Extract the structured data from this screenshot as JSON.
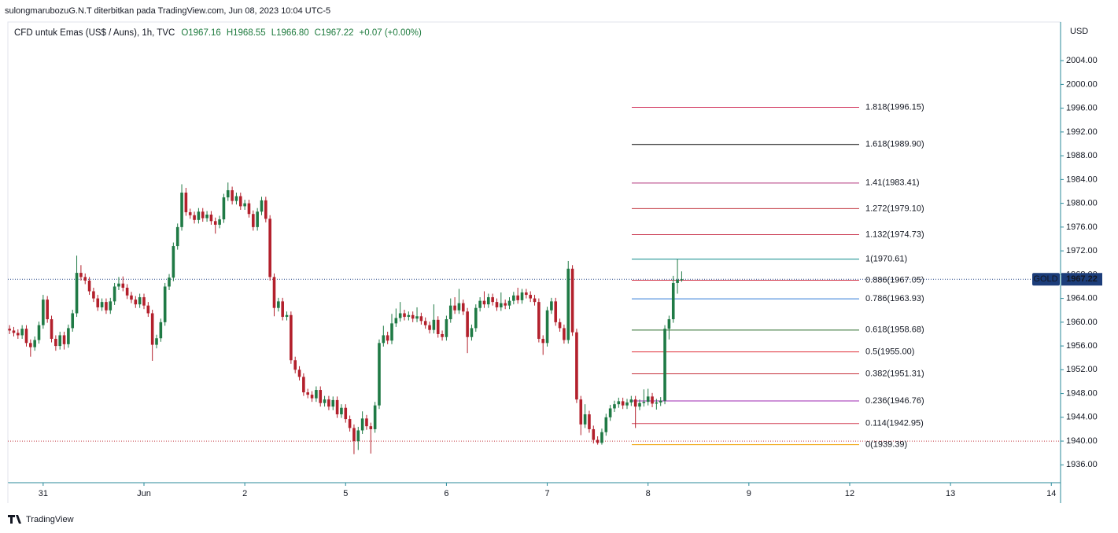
{
  "chart_data": {
    "type": "candlestick",
    "publisher": "sulongmarubozuG.N.T diterbitkan pada TradingView.com, Jun 08, 2023 10:04 UTC-5",
    "title": "CFD untuk Emas (US$ / Auns), 1h, TVC",
    "legend_values": [
      "O1967.16",
      "H1968.55",
      "L1966.80",
      "C1967.22",
      "+0.07 (+0.00%)"
    ],
    "currency": "USD",
    "symbol": "GOLD",
    "last_price": 1967.22,
    "last_price_label": "1967.22",
    "brand": "TradingView",
    "up_color": "#1f7a45",
    "down_color": "#b3202c",
    "xlim": [
      -0.4,
      250.2
    ],
    "xticks": [
      {
        "value": 8,
        "label": "31"
      },
      {
        "value": 32,
        "label": "Jun"
      },
      {
        "value": 56,
        "label": "2"
      },
      {
        "value": 80,
        "label": "5"
      },
      {
        "value": 104,
        "label": "6"
      },
      {
        "value": 128,
        "label": "7"
      },
      {
        "value": 152,
        "label": "8"
      },
      {
        "value": 176,
        "label": "9"
      },
      {
        "value": 200,
        "label": "12"
      },
      {
        "value": 224,
        "label": "13"
      },
      {
        "value": 248,
        "label": "14"
      }
    ],
    "ylim": [
      1933,
      2010.5
    ],
    "yticks": [
      {
        "value": 1936,
        "label": "1936.00"
      },
      {
        "value": 1940,
        "label": "1940.00"
      },
      {
        "value": 1944,
        "label": "1944.00"
      },
      {
        "value": 1948,
        "label": "1948.00"
      },
      {
        "value": 1952,
        "label": "1952.00"
      },
      {
        "value": 1956,
        "label": "1956.00"
      },
      {
        "value": 1960,
        "label": "1960.00"
      },
      {
        "value": 1964,
        "label": "1964.00"
      },
      {
        "value": 1968,
        "label": "1968.00"
      },
      {
        "value": 1972,
        "label": "1972.00"
      },
      {
        "value": 1976,
        "label": "1976.00"
      },
      {
        "value": 1980,
        "label": "1980.00"
      },
      {
        "value": 1984,
        "label": "1984.00"
      },
      {
        "value": 1988,
        "label": "1988.00"
      },
      {
        "value": 1992,
        "label": "1992.00"
      },
      {
        "value": 1996,
        "label": "1996.00"
      },
      {
        "value": 2000,
        "label": "2000.00"
      },
      {
        "value": 2004,
        "label": "2004.00"
      }
    ],
    "price_lines": [
      {
        "value": 1967.22,
        "color": "#2a4a8a"
      },
      {
        "value": 1940,
        "color": "#c0303a"
      }
    ],
    "fib_levels": [
      {
        "label": "1.818(1996.15)",
        "value": 1996.15,
        "color": "#d0305a"
      },
      {
        "label": "1.618(1989.90)",
        "value": 1989.9,
        "color": "#000000"
      },
      {
        "label": "1.41(1983.41)",
        "value": 1983.41,
        "color": "#b0307a"
      },
      {
        "label": "1.272(1979.10)",
        "value": 1979.1,
        "color": "#c0303a"
      },
      {
        "label": "1.132(1974.73)",
        "value": 1974.73,
        "color": "#c8304a"
      },
      {
        "label": "1(1970.61)",
        "value": 1970.61,
        "color": "#0a8a8a"
      },
      {
        "label": "0.886(1967.05)",
        "value": 1967.05,
        "color": "#d33a4f"
      },
      {
        "label": "0.786(1963.93)",
        "value": 1963.93,
        "color": "#2f7ad6"
      },
      {
        "label": "0.618(1958.68)",
        "value": 1958.68,
        "color": "#2e6b2e"
      },
      {
        "label": "0.5(1955.00)",
        "value": 1955.0,
        "color": "#e0303a"
      },
      {
        "label": "0.382(1951.31)",
        "value": 1951.31,
        "color": "#c6303a"
      },
      {
        "label": "0.236(1946.76)",
        "value": 1946.76,
        "color": "#9c27b0"
      },
      {
        "label": "0.114(1942.95)",
        "value": 1942.95,
        "color": "#d03a50"
      },
      {
        "label": "0(1939.39)",
        "value": 1939.39,
        "color": "#f0a000"
      }
    ],
    "ohlc": [
      [
        1958.9,
        1959.5,
        1958.0,
        1958.6
      ],
      [
        1958.6,
        1959.2,
        1957.6,
        1958.2
      ],
      [
        1958.2,
        1958.8,
        1957.2,
        1957.8
      ],
      [
        1957.8,
        1959.5,
        1957.2,
        1958.9
      ],
      [
        1958.9,
        1959.5,
        1955.9,
        1956.5
      ],
      [
        1956.5,
        1957.1,
        1954.2,
        1955.8
      ],
      [
        1955.8,
        1957.6,
        1955.2,
        1957.0
      ],
      [
        1957.0,
        1960.1,
        1956.4,
        1959.5
      ],
      [
        1959.5,
        1964.6,
        1958.9,
        1963.8
      ],
      [
        1963.8,
        1964.4,
        1959.9,
        1960.5
      ],
      [
        1960.5,
        1961.1,
        1956.6,
        1957.2
      ],
      [
        1957.2,
        1957.8,
        1955.2,
        1956.0
      ],
      [
        1956.0,
        1958.4,
        1955.4,
        1957.8
      ],
      [
        1957.8,
        1958.4,
        1955.4,
        1956.3
      ],
      [
        1956.3,
        1959.6,
        1955.7,
        1959.0
      ],
      [
        1959.0,
        1962.1,
        1958.4,
        1961.5
      ],
      [
        1961.5,
        1971.2,
        1960.9,
        1968.3
      ],
      [
        1968.3,
        1969.6,
        1967.0,
        1967.6
      ],
      [
        1967.6,
        1968.2,
        1966.4,
        1967.0
      ],
      [
        1967.0,
        1967.6,
        1964.6,
        1965.2
      ],
      [
        1965.2,
        1965.8,
        1963.4,
        1964.0
      ],
      [
        1964.0,
        1964.6,
        1961.9,
        1962.5
      ],
      [
        1962.5,
        1964.0,
        1961.9,
        1963.4
      ],
      [
        1963.4,
        1964.0,
        1961.4,
        1962.0
      ],
      [
        1962.0,
        1964.1,
        1961.4,
        1963.5
      ],
      [
        1963.5,
        1966.6,
        1962.9,
        1966.0
      ],
      [
        1966.0,
        1967.6,
        1965.4,
        1966.5
      ],
      [
        1966.5,
        1967.7,
        1965.2,
        1965.8
      ],
      [
        1965.8,
        1966.4,
        1963.9,
        1964.5
      ],
      [
        1964.5,
        1965.1,
        1963.2,
        1963.8
      ],
      [
        1963.8,
        1964.4,
        1962.4,
        1963.0
      ],
      [
        1963.0,
        1964.8,
        1962.4,
        1964.2
      ],
      [
        1964.2,
        1964.8,
        1962.2,
        1962.8
      ],
      [
        1962.8,
        1963.4,
        1960.9,
        1961.5
      ],
      [
        1961.5,
        1962.1,
        1953.5,
        1956.2
      ],
      [
        1956.2,
        1957.9,
        1955.6,
        1957.3
      ],
      [
        1957.3,
        1960.6,
        1956.7,
        1960.0
      ],
      [
        1960.0,
        1966.6,
        1959.4,
        1966.0
      ],
      [
        1966.0,
        1968.1,
        1965.4,
        1967.5
      ],
      [
        1967.5,
        1973.4,
        1966.9,
        1972.8
      ],
      [
        1972.8,
        1976.6,
        1972.2,
        1976.0
      ],
      [
        1976.0,
        1983.2,
        1975.4,
        1981.8
      ],
      [
        1981.8,
        1982.6,
        1977.9,
        1978.5
      ],
      [
        1978.5,
        1979.1,
        1977.4,
        1978.0
      ],
      [
        1978.0,
        1978.6,
        1976.6,
        1977.2
      ],
      [
        1977.2,
        1979.2,
        1976.6,
        1978.6
      ],
      [
        1978.6,
        1979.2,
        1976.9,
        1977.5
      ],
      [
        1977.5,
        1978.7,
        1976.9,
        1978.1
      ],
      [
        1978.1,
        1978.7,
        1976.4,
        1977.0
      ],
      [
        1977.0,
        1977.6,
        1974.9,
        1976.4
      ],
      [
        1976.4,
        1977.9,
        1975.8,
        1977.3
      ],
      [
        1977.3,
        1981.6,
        1976.7,
        1981.0
      ],
      [
        1981.0,
        1983.5,
        1980.4,
        1982.2
      ],
      [
        1982.2,
        1982.8,
        1979.8,
        1980.4
      ],
      [
        1980.4,
        1981.8,
        1979.8,
        1981.2
      ],
      [
        1981.2,
        1981.8,
        1978.9,
        1979.5
      ],
      [
        1979.5,
        1980.6,
        1978.9,
        1980.0
      ],
      [
        1980.0,
        1980.6,
        1977.6,
        1978.2
      ],
      [
        1978.2,
        1978.8,
        1975.4,
        1976.0
      ],
      [
        1976.0,
        1979.2,
        1975.4,
        1978.6
      ],
      [
        1978.6,
        1981.1,
        1978.0,
        1980.5
      ],
      [
        1980.5,
        1981.1,
        1976.8,
        1977.4
      ],
      [
        1977.4,
        1978.0,
        1967.0,
        1967.6
      ],
      [
        1967.6,
        1968.2,
        1961.0,
        1962.4
      ],
      [
        1962.4,
        1964.1,
        1961.8,
        1963.5
      ],
      [
        1963.5,
        1964.1,
        1960.3,
        1960.9
      ],
      [
        1960.9,
        1961.8,
        1960.3,
        1961.2
      ],
      [
        1961.2,
        1961.8,
        1953.0,
        1953.6
      ],
      [
        1953.6,
        1954.2,
        1951.4,
        1952.0
      ],
      [
        1952.0,
        1952.6,
        1950.2,
        1950.8
      ],
      [
        1950.8,
        1951.4,
        1947.6,
        1948.2
      ],
      [
        1948.2,
        1948.8,
        1947.2,
        1947.8
      ],
      [
        1947.8,
        1948.4,
        1946.6,
        1947.2
      ],
      [
        1947.2,
        1949.2,
        1946.6,
        1948.6
      ],
      [
        1948.6,
        1949.2,
        1945.8,
        1946.4
      ],
      [
        1946.4,
        1947.6,
        1945.8,
        1947.0
      ],
      [
        1947.0,
        1947.6,
        1945.2,
        1945.8
      ],
      [
        1945.8,
        1947.5,
        1945.2,
        1946.9
      ],
      [
        1946.9,
        1947.5,
        1943.9,
        1944.5
      ],
      [
        1944.5,
        1946.2,
        1943.9,
        1945.6
      ],
      [
        1945.6,
        1946.2,
        1943.1,
        1943.7
      ],
      [
        1943.7,
        1944.3,
        1941.6,
        1942.2
      ],
      [
        1942.2,
        1942.8,
        1937.8,
        1940.0
      ],
      [
        1940.0,
        1942.4,
        1938.5,
        1941.8
      ],
      [
        1941.8,
        1945.0,
        1941.2,
        1943.8
      ],
      [
        1943.8,
        1944.4,
        1941.9,
        1942.5
      ],
      [
        1942.5,
        1943.1,
        1937.9,
        1942.0
      ],
      [
        1942.0,
        1946.6,
        1941.4,
        1946.0
      ],
      [
        1946.0,
        1957.1,
        1945.4,
        1956.5
      ],
      [
        1956.5,
        1959.4,
        1955.9,
        1957.8
      ],
      [
        1957.8,
        1958.4,
        1956.3,
        1956.9
      ],
      [
        1956.9,
        1961.4,
        1956.3,
        1959.8
      ],
      [
        1959.8,
        1962.3,
        1959.2,
        1960.7
      ],
      [
        1960.7,
        1963.4,
        1960.1,
        1961.5
      ],
      [
        1961.5,
        1962.1,
        1960.3,
        1960.9
      ],
      [
        1960.9,
        1961.8,
        1960.3,
        1961.2
      ],
      [
        1961.2,
        1961.8,
        1960.0,
        1960.6
      ],
      [
        1960.6,
        1962.5,
        1960.0,
        1961.0
      ],
      [
        1961.0,
        1961.6,
        1959.6,
        1960.2
      ],
      [
        1960.2,
        1960.8,
        1958.9,
        1959.5
      ],
      [
        1959.5,
        1960.1,
        1958.1,
        1958.7
      ],
      [
        1958.7,
        1963.0,
        1958.1,
        1960.4
      ],
      [
        1960.4,
        1961.0,
        1957.4,
        1958.0
      ],
      [
        1958.0,
        1958.6,
        1956.9,
        1957.5
      ],
      [
        1957.5,
        1961.1,
        1956.9,
        1960.5
      ],
      [
        1960.5,
        1964.0,
        1959.9,
        1962.8
      ],
      [
        1962.8,
        1964.2,
        1961.4,
        1962.0
      ],
      [
        1962.0,
        1965.6,
        1961.4,
        1963.2
      ],
      [
        1963.2,
        1963.8,
        1961.2,
        1961.8
      ],
      [
        1961.8,
        1962.4,
        1954.8,
        1957.5
      ],
      [
        1957.5,
        1959.6,
        1956.9,
        1959.0
      ],
      [
        1959.0,
        1963.0,
        1958.4,
        1962.4
      ],
      [
        1962.4,
        1964.2,
        1961.8,
        1963.6
      ],
      [
        1963.6,
        1965.2,
        1962.4,
        1963.0
      ],
      [
        1963.0,
        1964.8,
        1962.4,
        1964.2
      ],
      [
        1964.2,
        1964.8,
        1962.8,
        1963.4
      ],
      [
        1963.4,
        1964.0,
        1961.9,
        1962.5
      ],
      [
        1962.5,
        1965.0,
        1961.9,
        1963.2
      ],
      [
        1963.2,
        1963.8,
        1962.2,
        1962.8
      ],
      [
        1962.8,
        1964.2,
        1962.2,
        1963.6
      ],
      [
        1963.6,
        1965.1,
        1963.0,
        1964.5
      ],
      [
        1964.5,
        1965.8,
        1963.1,
        1963.7
      ],
      [
        1963.7,
        1965.6,
        1963.1,
        1965.0
      ],
      [
        1965.0,
        1965.6,
        1964.0,
        1964.6
      ],
      [
        1964.6,
        1965.2,
        1963.4,
        1964.0
      ],
      [
        1964.0,
        1964.6,
        1962.8,
        1963.4
      ],
      [
        1963.4,
        1964.0,
        1956.6,
        1957.2
      ],
      [
        1957.2,
        1957.8,
        1954.5,
        1956.5
      ],
      [
        1956.5,
        1962.6,
        1955.9,
        1962.0
      ],
      [
        1962.0,
        1964.1,
        1961.4,
        1963.5
      ],
      [
        1963.5,
        1964.1,
        1959.4,
        1960.0
      ],
      [
        1960.0,
        1960.6,
        1958.4,
        1959.0
      ],
      [
        1959.0,
        1959.6,
        1956.4,
        1957.0
      ],
      [
        1957.0,
        1970.3,
        1956.4,
        1969.0
      ],
      [
        1969.0,
        1969.6,
        1957.7,
        1958.3
      ],
      [
        1958.3,
        1958.9,
        1946.4,
        1947.0
      ],
      [
        1947.0,
        1947.6,
        1941.0,
        1942.8
      ],
      [
        1942.8,
        1946.2,
        1942.2,
        1944.5
      ],
      [
        1944.5,
        1945.1,
        1941.4,
        1942.0
      ],
      [
        1942.0,
        1942.6,
        1939.6,
        1940.2
      ],
      [
        1940.2,
        1940.8,
        1939.4,
        1939.7
      ],
      [
        1939.7,
        1942.1,
        1939.4,
        1941.5
      ],
      [
        1941.5,
        1944.6,
        1940.9,
        1944.0
      ],
      [
        1944.0,
        1946.1,
        1943.4,
        1945.5
      ],
      [
        1945.5,
        1946.8,
        1944.9,
        1946.2
      ],
      [
        1946.2,
        1947.3,
        1945.6,
        1946.7
      ],
      [
        1946.7,
        1947.3,
        1945.4,
        1946.0
      ],
      [
        1946.0,
        1947.1,
        1945.4,
        1946.5
      ],
      [
        1946.5,
        1947.6,
        1945.9,
        1947.0
      ],
      [
        1947.0,
        1947.6,
        1942.2,
        1945.8
      ],
      [
        1945.8,
        1947.0,
        1945.2,
        1946.4
      ],
      [
        1946.4,
        1948.7,
        1945.8,
        1946.6
      ],
      [
        1946.6,
        1948.8,
        1946.0,
        1947.5
      ],
      [
        1947.5,
        1948.1,
        1945.7,
        1946.3
      ],
      [
        1946.3,
        1947.1,
        1945.3,
        1946.5
      ],
      [
        1946.5,
        1947.4,
        1945.9,
        1946.8
      ],
      [
        1946.8,
        1959.5,
        1946.2,
        1958.9
      ],
      [
        1958.9,
        1961.1,
        1957.1,
        1960.5
      ],
      [
        1960.5,
        1967.8,
        1959.9,
        1966.6
      ],
      [
        1966.6,
        1970.6,
        1964.8,
        1967.16
      ],
      [
        1967.16,
        1968.55,
        1966.8,
        1967.22
      ]
    ]
  }
}
